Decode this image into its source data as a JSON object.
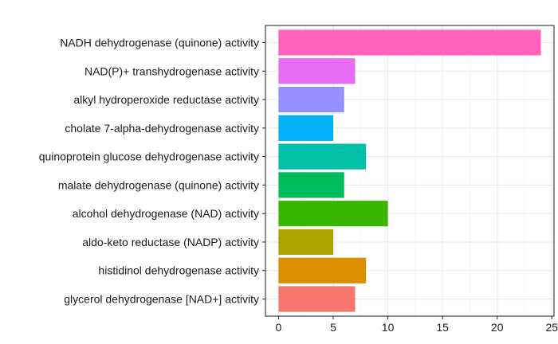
{
  "chart_data": {
    "type": "bar",
    "orientation": "horizontal",
    "title": "",
    "xlabel": "",
    "ylabel": "",
    "categories": [
      "glycerol dehydrogenase [NAD+] activity",
      "histidinol dehydrogenase activity",
      "aldo-keto reductase (NADP) activity",
      "alcohol dehydrogenase (NAD) activity",
      "malate dehydrogenase (quinone) activity",
      "quinoprotein glucose dehydrogenase activity",
      "cholate 7-alpha-dehydrogenase activity",
      "alkyl hydroperoxide reductase activity",
      "NAD(P)+ transhydrogenase activity",
      "NADH dehydrogenase (quinone) activity"
    ],
    "values": [
      7,
      8,
      5,
      10,
      6,
      8,
      5,
      6,
      7,
      24
    ],
    "colors": [
      "#F8766D",
      "#DB8E00",
      "#AEA200",
      "#39B600",
      "#00BD5C",
      "#00C1A7",
      "#00B0F6",
      "#9590FF",
      "#E76BF3",
      "#FF62BC"
    ],
    "xlim": [
      -1.2,
      25.2
    ],
    "xticks": [
      0,
      5,
      10,
      15,
      20,
      25
    ],
    "grid": true,
    "legend": "none"
  }
}
